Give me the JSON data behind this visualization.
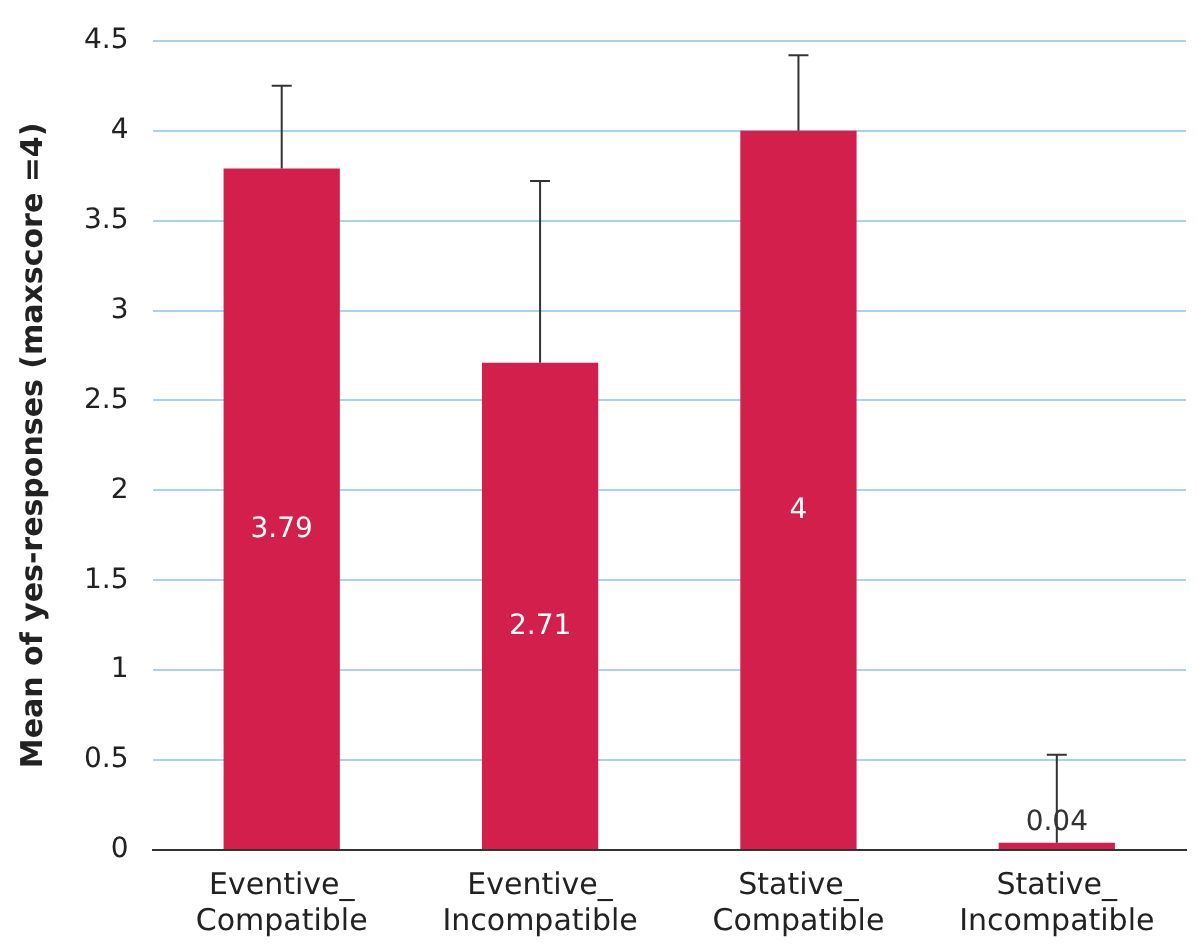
{
  "chart_data": {
    "type": "bar",
    "ylabel": "Mean of yes-responses (maxscore =4)",
    "categories": [
      "Eventive_ Compatible",
      "Eventive_ Incompatible",
      "Stative_ Compatible",
      "Stative_ Incompatible"
    ],
    "values": [
      3.79,
      2.71,
      4,
      0.04
    ],
    "errors": [
      [
        3.79,
        4.25
      ],
      [
        2.71,
        3.72
      ],
      [
        4,
        4.42
      ],
      [
        0.04,
        0.53
      ]
    ],
    "color": "#d31f4b",
    "ylim": [
      0,
      4.5
    ],
    "yticks": [
      0,
      0.5,
      1,
      1.5,
      2,
      2.5,
      3,
      3.5,
      4,
      4.5
    ],
    "grid": "y",
    "data_labels": true
  }
}
